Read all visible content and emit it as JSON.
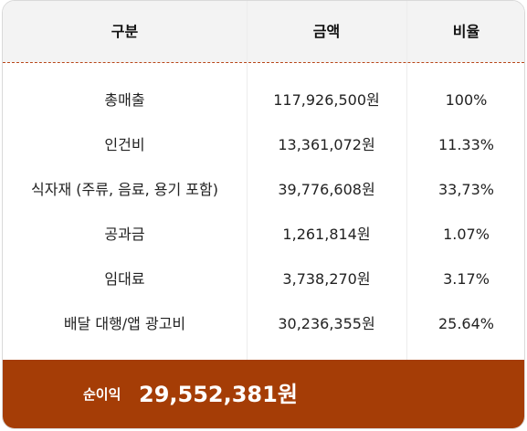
{
  "table": {
    "headers": {
      "label": "구분",
      "amount": "금액",
      "ratio": "비율"
    },
    "rows": [
      {
        "label": "총매출",
        "amount": "117,926,500원",
        "ratio": "100%"
      },
      {
        "label": "인건비",
        "amount": "13,361,072원",
        "ratio": "11.33%"
      },
      {
        "label": "식자재 (주류, 음료, 용기 포함)",
        "amount": "39,776,608원",
        "ratio": "33,73%"
      },
      {
        "label": "공과금",
        "amount": "1,261,814원",
        "ratio": "1.07%"
      },
      {
        "label": "임대료",
        "amount": "3,738,270원",
        "ratio": "3.17%"
      },
      {
        "label": "배달 대행/앱 광고비",
        "amount": "30,236,355원",
        "ratio": "25.64%"
      }
    ]
  },
  "footer": {
    "label": "순이익",
    "value": "29,552,381원"
  },
  "colors": {
    "header_bg": "#f3f3f3",
    "accent": "#a53d06",
    "divider": "#b8471a"
  }
}
